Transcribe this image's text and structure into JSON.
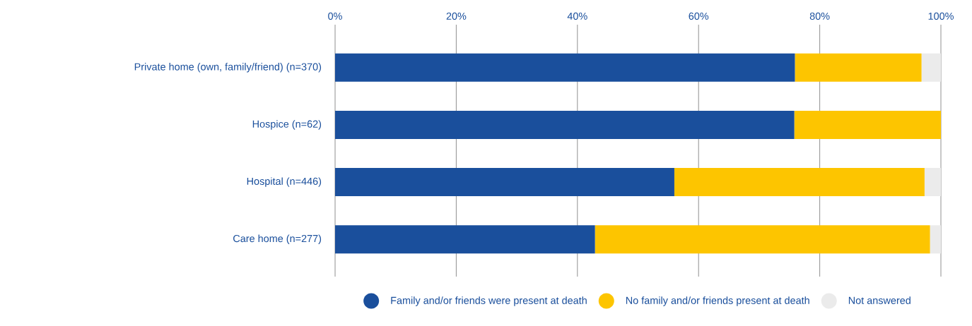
{
  "chart_data": {
    "type": "bar",
    "orientation": "horizontal",
    "stacked": true,
    "categories": [
      "Private home (own, family/friend) (n=370)",
      "Hospice (n=62)",
      "Hospital (n=446)",
      "Care home (n=277)"
    ],
    "series": [
      {
        "name": "Family and/or friends were present at death",
        "color": "#1a4f9c",
        "values": [
          75.9,
          75.8,
          56.0,
          42.9
        ]
      },
      {
        "name": "No family and/or friends present at death",
        "color": "#fdc500",
        "values": [
          20.9,
          24.2,
          41.3,
          55.3
        ]
      },
      {
        "name": "Not answered",
        "color": "#ebebeb",
        "values": [
          3.2,
          0,
          2.7,
          1.8
        ]
      }
    ],
    "xlim": [
      0,
      100
    ],
    "xticks": [
      {
        "value": 0,
        "label": "0%"
      },
      {
        "value": 20,
        "label": "20%"
      },
      {
        "value": 40,
        "label": "40%"
      },
      {
        "value": 60,
        "label": "60%"
      },
      {
        "value": 80,
        "label": "80%"
      },
      {
        "value": 100,
        "label": "100%"
      }
    ],
    "grid": "x",
    "legend": "bottom"
  }
}
